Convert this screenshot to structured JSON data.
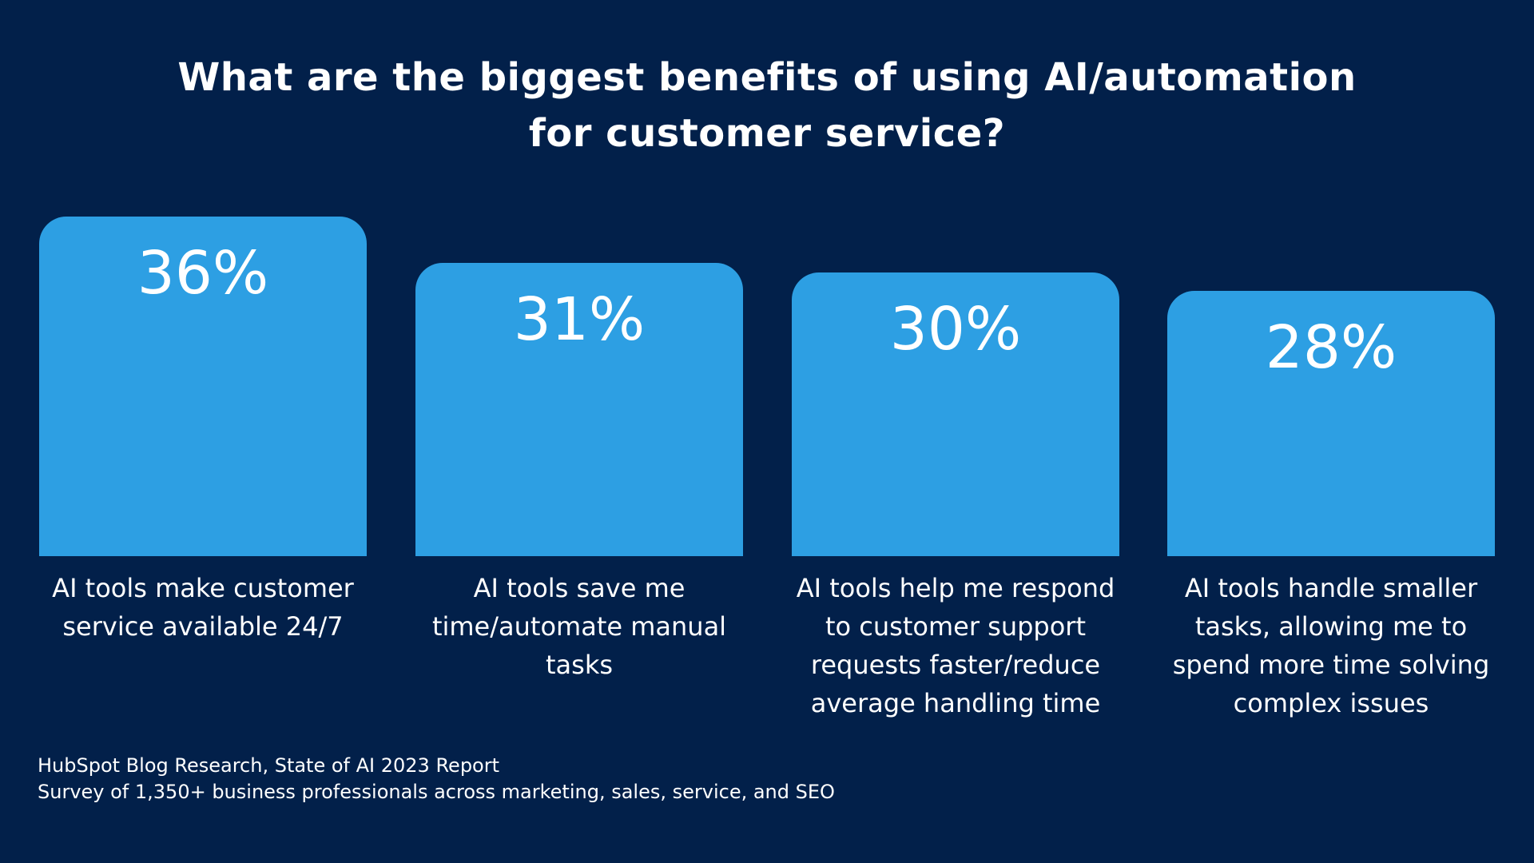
{
  "chart_data": {
    "type": "bar",
    "title": "What are the biggest benefits of using AI/automation for customer service?",
    "title_lines": [
      "What are the biggest benefits of using AI/automation",
      "for customer service?"
    ],
    "categories": [
      "AI tools make customer service available 24/7",
      "AI tools save me time/automate manual tasks",
      "AI tools help me respond to customer support requests faster/reduce average handling time",
      "AI tools handle smaller tasks, allowing me to spend more time solving complex issues"
    ],
    "values": [
      36,
      31,
      30,
      28
    ],
    "data_labels": [
      "36%",
      "31%",
      "30%",
      "28%"
    ],
    "xlabel": "",
    "ylabel": "",
    "unit": "%",
    "colors": {
      "background": "#02204a",
      "bar": "#2d9fe3"
    }
  },
  "footer": {
    "source": "HubSpot Blog Research, State of AI 2023 Report",
    "survey": "Survey of 1,350+ business professionals across marketing, sales, service, and SEO"
  }
}
